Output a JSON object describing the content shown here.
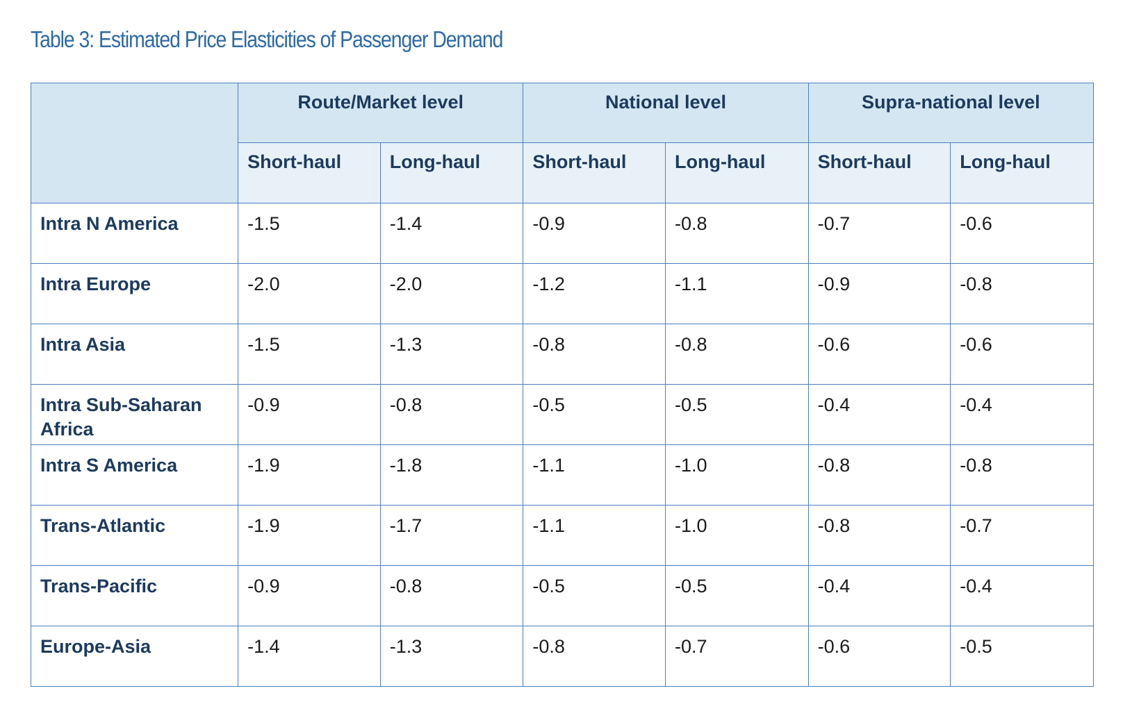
{
  "title": "Table 3: Estimated Price Elasticities of Passenger Demand",
  "column_groups": [
    {
      "label": "Route/Market level",
      "sub": [
        "Short-haul",
        "Long-haul"
      ]
    },
    {
      "label": "National level",
      "sub": [
        "Short-haul",
        "Long-haul"
      ]
    },
    {
      "label": "Supra-national level",
      "sub": [
        "Short-haul",
        "Long-haul"
      ]
    }
  ],
  "rows": [
    {
      "label": "Intra N America",
      "values": [
        "-1.5",
        "-1.4",
        "-0.9",
        "-0.8",
        "-0.7",
        "-0.6"
      ]
    },
    {
      "label": "Intra Europe",
      "values": [
        "-2.0",
        "-2.0",
        "-1.2",
        "-1.1",
        "-0.9",
        "-0.8"
      ]
    },
    {
      "label": "Intra Asia",
      "values": [
        "-1.5",
        "-1.3",
        "-0.8",
        "-0.8",
        "-0.6",
        "-0.6"
      ]
    },
    {
      "label": "Intra Sub-Saharan Africa",
      "values": [
        "-0.9",
        "-0.8",
        "-0.5",
        "-0.5",
        "-0.4",
        "-0.4"
      ]
    },
    {
      "label": "Intra S America",
      "values": [
        "-1.9",
        "-1.8",
        "-1.1",
        "-1.0",
        "-0.8",
        "-0.8"
      ]
    },
    {
      "label": "Trans-Atlantic",
      "values": [
        "-1.9",
        "-1.7",
        "-1.1",
        "-1.0",
        "-0.8",
        "-0.7"
      ]
    },
    {
      "label": "Trans-Pacific",
      "values": [
        "-0.9",
        "-0.8",
        "-0.5",
        "-0.5",
        "-0.4",
        "-0.4"
      ]
    },
    {
      "label": "Europe-Asia",
      "values": [
        "-1.4",
        "-1.3",
        "-0.8",
        "-0.7",
        "-0.6",
        "-0.5"
      ]
    }
  ]
}
